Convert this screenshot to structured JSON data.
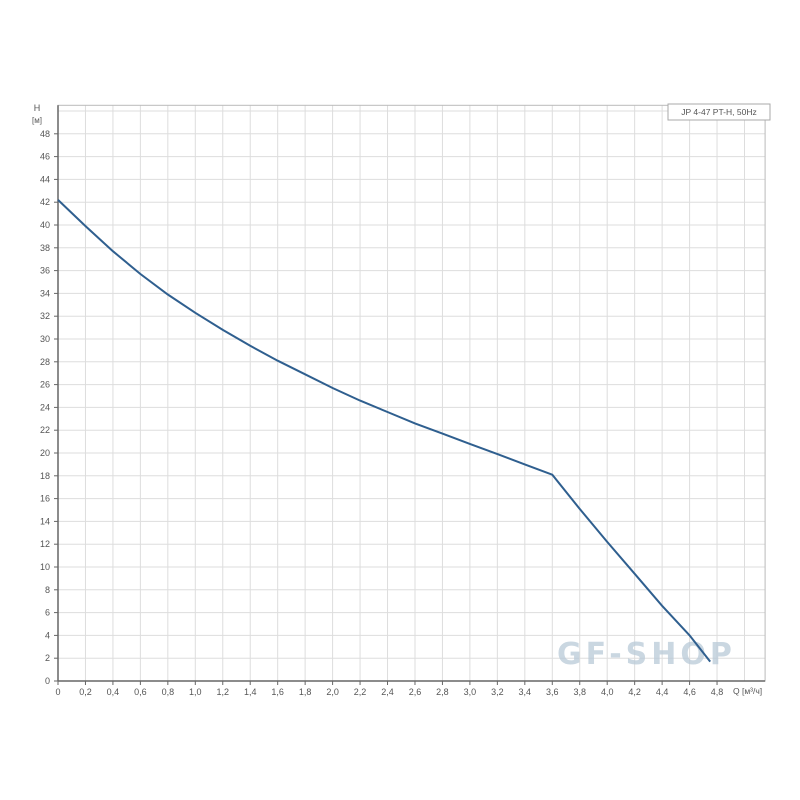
{
  "chart_data": {
    "type": "line",
    "title": "",
    "legend": "JP 4-47 PT-H, 50Hz",
    "legend_position": "top-right",
    "xlabel": "Q [м³/ч]",
    "ylabel": "H",
    "yunit": "[м]",
    "xlim": [
      0,
      5.15
    ],
    "ylim": [
      0,
      50.5
    ],
    "grid": true,
    "x_ticks": [
      "0",
      "0,2",
      "0,4",
      "0,6",
      "0,8",
      "1,0",
      "1,2",
      "1,4",
      "1,6",
      "1,8",
      "2,0",
      "2,2",
      "2,4",
      "2,6",
      "2,8",
      "3,0",
      "3,2",
      "3,4",
      "3,6",
      "3,8",
      "4,0",
      "4,2",
      "4,4",
      "4,6",
      "4,8"
    ],
    "y_ticks": [
      "0",
      "2",
      "4",
      "6",
      "8",
      "10",
      "12",
      "14",
      "16",
      "18",
      "20",
      "22",
      "24",
      "26",
      "28",
      "30",
      "32",
      "34",
      "36",
      "38",
      "40",
      "42",
      "44",
      "46",
      "48"
    ],
    "series": [
      {
        "name": "JP 4-47 PT-H, 50Hz",
        "color": "#2f5f8f",
        "x": [
          0,
          0.2,
          0.4,
          0.6,
          0.8,
          1.0,
          1.2,
          1.4,
          1.6,
          1.8,
          2.0,
          2.2,
          2.4,
          2.6,
          2.8,
          3.0,
          3.2,
          3.4,
          3.6,
          3.8,
          4.0,
          4.2,
          4.4,
          4.6,
          4.75
        ],
        "y": [
          42.2,
          39.9,
          37.7,
          35.7,
          33.9,
          32.3,
          30.8,
          29.4,
          28.1,
          26.9,
          25.7,
          24.6,
          23.6,
          22.6,
          21.7,
          20.8,
          19.9,
          19.0,
          18.1,
          15.1,
          12.2,
          9.4,
          6.6,
          4.0,
          1.7
        ]
      }
    ]
  },
  "watermark": "GF-SHOP"
}
